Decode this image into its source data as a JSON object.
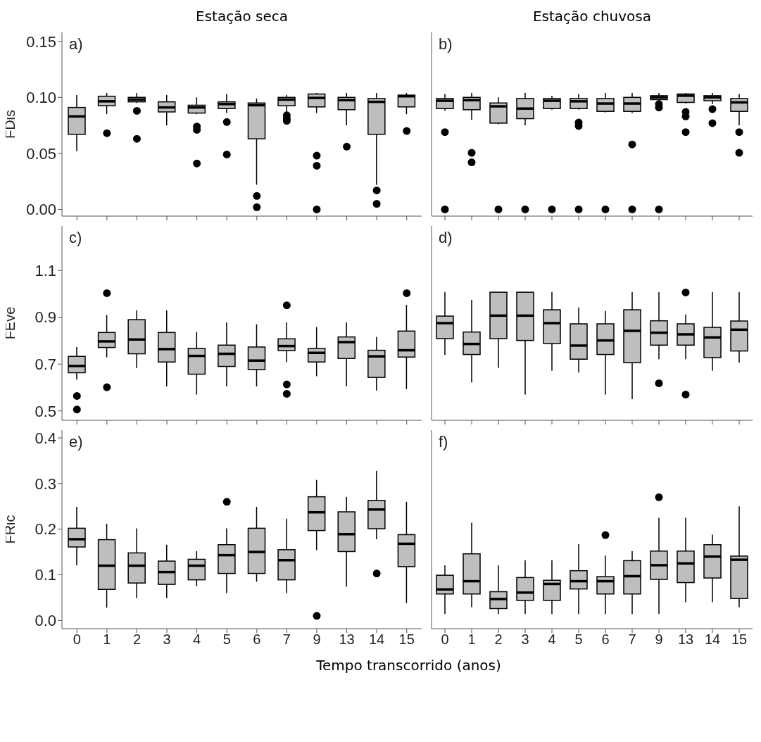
{
  "chart_data": [
    {
      "type": "box",
      "title": "Estação seca",
      "ylabel": "FDis",
      "annotations": [
        "a)"
      ],
      "color": "#bebebe",
      "tick_labels": "y",
      "categories": [
        "0",
        "1",
        "2",
        "3",
        "4",
        "5",
        "6",
        "7",
        "9",
        "13",
        "14",
        "15"
      ],
      "ylim": [
        -0.006,
        0.158
      ],
      "yticks": [
        {
          "value": 0,
          "label": "0.00"
        },
        {
          "value": 0.05,
          "label": "0.05"
        },
        {
          "value": 0.1,
          "label": "0.10"
        },
        {
          "value": 0.15,
          "label": "0.15"
        }
      ],
      "boxes": [
        {
          "low": 0.052,
          "q1": 0.067,
          "median": 0.083,
          "q3": 0.091,
          "high": 0.102
        },
        {
          "low": 0.085,
          "q1": 0.0925,
          "median": 0.0965,
          "q3": 0.101,
          "high": 0.104,
          "outliers": [
            0.068
          ]
        },
        {
          "low": 0.095,
          "q1": 0.096,
          "median": 0.098,
          "q3": 0.1,
          "high": 0.104,
          "outliers": [
            0.088,
            0.063
          ]
        },
        {
          "low": 0.075,
          "q1": 0.087,
          "median": 0.091,
          "q3": 0.096,
          "high": 0.102
        },
        {
          "low": 0.085,
          "q1": 0.086,
          "median": 0.091,
          "q3": 0.093,
          "high": 0.1,
          "outliers": [
            0.074,
            0.071,
            0.041
          ]
        },
        {
          "low": 0.086,
          "q1": 0.09,
          "median": 0.094,
          "q3": 0.096,
          "high": 0.103,
          "outliers": [
            0.078,
            0.049
          ]
        },
        {
          "low": 0.022,
          "q1": 0.063,
          "median": 0.093,
          "q3": 0.095,
          "high": 0.099,
          "outliers": [
            0.012,
            0.002
          ]
        },
        {
          "low": 0.087,
          "q1": 0.0925,
          "median": 0.098,
          "q3": 0.1,
          "high": 0.102,
          "outliers": [
            0.084,
            0.081,
            0.079
          ]
        },
        {
          "low": 0.086,
          "q1": 0.0915,
          "median": 0.0995,
          "q3": 0.103,
          "high": 0.104,
          "outliers": [
            0.048,
            0.039,
            0
          ]
        },
        {
          "low": 0.075,
          "q1": 0.089,
          "median": 0.0975,
          "q3": 0.1,
          "high": 0.104,
          "outliers": [
            0.056
          ]
        },
        {
          "low": 0.022,
          "q1": 0.067,
          "median": 0.096,
          "q3": 0.099,
          "high": 0.104,
          "outliers": [
            0.017,
            0.005
          ]
        },
        {
          "low": 0.085,
          "q1": 0.0915,
          "median": 0.101,
          "q3": 0.102,
          "high": 0.104,
          "outliers": [
            0.07
          ]
        }
      ]
    },
    {
      "type": "box",
      "title": "Estação chuvosa",
      "annotations": [
        "b)"
      ],
      "color": "#bebebe",
      "tick_labels": false,
      "categories": [
        "0",
        "1",
        "2",
        "3",
        "4",
        "5",
        "6",
        "7",
        "9",
        "13",
        "14",
        "15"
      ],
      "ylim": [
        -0.006,
        0.158
      ],
      "boxes": [
        {
          "low": 0.088,
          "q1": 0.09,
          "median": 0.097,
          "q3": 0.099,
          "high": 0.103,
          "outliers": [
            0.069,
            0
          ]
        },
        {
          "low": 0.08,
          "q1": 0.089,
          "median": 0.0975,
          "q3": 0.1,
          "high": 0.104,
          "outliers": [
            0.0505,
            0.042
          ]
        },
        {
          "low": 0.076,
          "q1": 0.077,
          "median": 0.092,
          "q3": 0.095,
          "high": 0.1,
          "outliers": [
            0
          ]
        },
        {
          "low": 0.075,
          "q1": 0.081,
          "median": 0.09,
          "q3": 0.099,
          "high": 0.104,
          "outliers": [
            0
          ]
        },
        {
          "low": 0.089,
          "q1": 0.09,
          "median": 0.097,
          "q3": 0.099,
          "high": 0.1015,
          "outliers": [
            0
          ]
        },
        {
          "low": 0.089,
          "q1": 0.09,
          "median": 0.0965,
          "q3": 0.099,
          "high": 0.103,
          "outliers": [
            0.0775,
            0.0745,
            0
          ]
        },
        {
          "low": 0.0865,
          "q1": 0.0875,
          "median": 0.0945,
          "q3": 0.099,
          "high": 0.104,
          "outliers": [
            0
          ]
        },
        {
          "low": 0.086,
          "q1": 0.0875,
          "median": 0.0945,
          "q3": 0.1,
          "high": 0.104,
          "outliers": [
            0.058,
            0
          ]
        },
        {
          "low": 0.097,
          "q1": 0.098,
          "median": 0.1,
          "q3": 0.1015,
          "high": 0.104,
          "outliers": [
            0.094,
            0.091,
            0
          ]
        },
        {
          "low": 0.0945,
          "q1": 0.0955,
          "median": 0.1015,
          "q3": 0.103,
          "high": 0.104,
          "outliers": [
            0.087,
            0.083,
            0.069
          ]
        },
        {
          "low": 0.094,
          "q1": 0.097,
          "median": 0.1,
          "q3": 0.1015,
          "high": 0.104,
          "outliers": [
            0.0895,
            0.077
          ]
        },
        {
          "low": 0.075,
          "q1": 0.0875,
          "median": 0.0955,
          "q3": 0.099,
          "high": 0.103,
          "outliers": [
            0.069,
            0.0505
          ]
        }
      ]
    },
    {
      "type": "box",
      "ylabel": "FEve",
      "annotations": [
        "c)"
      ],
      "color": "#bebebe",
      "tick_labels": "y",
      "categories": [
        "0",
        "1",
        "2",
        "3",
        "4",
        "5",
        "6",
        "7",
        "9",
        "13",
        "14",
        "15"
      ],
      "ylim": [
        0.46,
        1.29
      ],
      "yticks": [
        0.5,
        0.7,
        0.9,
        1.1
      ],
      "boxes": [
        {
          "low": 0.634,
          "q1": 0.663,
          "median": 0.692,
          "q3": 0.733,
          "high": 0.773,
          "outliers": [
            0.564,
            0.506
          ]
        },
        {
          "low": 0.729,
          "q1": 0.771,
          "median": 0.797,
          "q3": 0.835,
          "high": 0.91,
          "outliers": [
            1.003,
            0.601
          ]
        },
        {
          "low": 0.683,
          "q1": 0.744,
          "median": 0.805,
          "q3": 0.89,
          "high": 0.93
        },
        {
          "low": 0.605,
          "q1": 0.709,
          "median": 0.764,
          "q3": 0.835,
          "high": 0.93
        },
        {
          "low": 0.57,
          "q1": 0.657,
          "median": 0.735,
          "q3": 0.767,
          "high": 0.837
        },
        {
          "low": 0.605,
          "q1": 0.69,
          "median": 0.744,
          "q3": 0.781,
          "high": 0.878
        },
        {
          "low": 0.605,
          "q1": 0.677,
          "median": 0.715,
          "q3": 0.773,
          "high": 0.87
        },
        {
          "low": 0.709,
          "q1": 0.758,
          "median": 0.777,
          "q3": 0.808,
          "high": 0.878,
          "outliers": [
            0.951,
            0.613,
            0.573
          ]
        },
        {
          "low": 0.648,
          "q1": 0.709,
          "median": 0.748,
          "q3": 0.767,
          "high": 0.858
        },
        {
          "low": 0.605,
          "q1": 0.724,
          "median": 0.794,
          "q3": 0.816,
          "high": 0.878
        },
        {
          "low": 0.587,
          "q1": 0.643,
          "median": 0.733,
          "q3": 0.759,
          "high": 0.816
        },
        {
          "low": 0.593,
          "q1": 0.73,
          "median": 0.759,
          "q3": 0.841,
          "high": 0.953,
          "outliers": [
            1.003
          ]
        }
      ]
    },
    {
      "type": "box",
      "annotations": [
        "d)"
      ],
      "color": "#bebebe",
      "tick_labels": false,
      "categories": [
        "0",
        "1",
        "2",
        "3",
        "4",
        "5",
        "6",
        "7",
        "9",
        "13",
        "14",
        "15"
      ],
      "ylim": [
        0.46,
        1.29
      ],
      "boxes": [
        {
          "low": 0.739,
          "q1": 0.809,
          "median": 0.875,
          "q3": 0.905,
          "high": 1.008
        },
        {
          "low": 0.622,
          "q1": 0.741,
          "median": 0.786,
          "q3": 0.837,
          "high": 0.974
        },
        {
          "low": 0.684,
          "q1": 0.809,
          "median": 0.907,
          "q3": 1.007,
          "high": 1.008
        },
        {
          "low": 0.57,
          "q1": 0.801,
          "median": 0.907,
          "q3": 1.007,
          "high": 1.008
        },
        {
          "low": 0.671,
          "q1": 0.788,
          "median": 0.875,
          "q3": 0.932,
          "high": 1.008
        },
        {
          "low": 0.664,
          "q1": 0.721,
          "median": 0.779,
          "q3": 0.872,
          "high": 0.942
        },
        {
          "low": 0.57,
          "q1": 0.741,
          "median": 0.801,
          "q3": 0.872,
          "high": 0.927
        },
        {
          "low": 0.55,
          "q1": 0.706,
          "median": 0.842,
          "q3": 0.932,
          "high": 1.008
        },
        {
          "low": 0.721,
          "q1": 0.781,
          "median": 0.834,
          "q3": 0.885,
          "high": 1.008,
          "outliers": [
            0.618
          ]
        },
        {
          "low": 0.721,
          "q1": 0.781,
          "median": 0.827,
          "q3": 0.872,
          "high": 0.912,
          "outliers": [
            1.006,
            0.57
          ]
        },
        {
          "low": 0.671,
          "q1": 0.728,
          "median": 0.814,
          "q3": 0.857,
          "high": 1.008
        },
        {
          "low": 0.706,
          "q1": 0.756,
          "median": 0.847,
          "q3": 0.884,
          "high": 1.008
        }
      ]
    },
    {
      "type": "box",
      "ylabel": "FRic",
      "xlabel": "Tempo transcorrido (anos)",
      "annotations": [
        "e)"
      ],
      "color": "#bebebe",
      "categories": [
        "0",
        "1",
        "2",
        "3",
        "4",
        "5",
        "6",
        "7",
        "9",
        "13",
        "14",
        "15"
      ],
      "ylim": [
        -0.018,
        0.417
      ],
      "yticks": [
        {
          "value": 0,
          "label": "0.0"
        },
        {
          "value": 0.1,
          "label": "0.1"
        },
        {
          "value": 0.2,
          "label": "0.2"
        },
        {
          "value": 0.3,
          "label": "0.3"
        },
        {
          "value": 0.4,
          "label": "0.4"
        }
      ],
      "boxes": [
        {
          "low": 0.121,
          "q1": 0.161,
          "median": 0.178,
          "q3": 0.202,
          "high": 0.249
        },
        {
          "low": 0.028,
          "q1": 0.068,
          "median": 0.12,
          "q3": 0.177,
          "high": 0.212
        },
        {
          "low": 0.049,
          "q1": 0.082,
          "median": 0.12,
          "q3": 0.148,
          "high": 0.202
        },
        {
          "low": 0.049,
          "q1": 0.079,
          "median": 0.106,
          "q3": 0.13,
          "high": 0.166
        },
        {
          "low": 0.075,
          "q1": 0.089,
          "median": 0.12,
          "q3": 0.134,
          "high": 0.152
        },
        {
          "low": 0.06,
          "q1": 0.103,
          "median": 0.143,
          "q3": 0.166,
          "high": 0.202,
          "outliers": [
            0.26
          ]
        },
        {
          "low": 0.085,
          "q1": 0.103,
          "median": 0.15,
          "q3": 0.202,
          "high": 0.249
        },
        {
          "low": 0.06,
          "q1": 0.089,
          "median": 0.132,
          "q3": 0.155,
          "high": 0.223
        },
        {
          "low": 0.154,
          "q1": 0.197,
          "median": 0.237,
          "q3": 0.271,
          "high": 0.308,
          "outliers": [
            0.01
          ]
        },
        {
          "low": 0.074,
          "q1": 0.151,
          "median": 0.189,
          "q3": 0.238,
          "high": 0.271
        },
        {
          "low": 0.178,
          "q1": 0.201,
          "median": 0.243,
          "q3": 0.263,
          "high": 0.328,
          "outliers": [
            0.103
          ]
        },
        {
          "low": 0.038,
          "q1": 0.118,
          "median": 0.168,
          "q3": 0.188,
          "high": 0.26
        }
      ]
    },
    {
      "type": "box",
      "annotations": [
        "f)"
      ],
      "color": "#bebebe",
      "tick_labels": "x",
      "categories": [
        "0",
        "1",
        "2",
        "3",
        "4",
        "5",
        "6",
        "7",
        "9",
        "13",
        "14",
        "15"
      ],
      "ylim": [
        -0.018,
        0.417
      ],
      "boxes": [
        {
          "low": 0.014,
          "q1": 0.058,
          "median": 0.068,
          "q3": 0.099,
          "high": 0.121
        },
        {
          "low": 0.029,
          "q1": 0.058,
          "median": 0.086,
          "q3": 0.146,
          "high": 0.214
        },
        {
          "low": 0.014,
          "q1": 0.026,
          "median": 0.047,
          "q3": 0.063,
          "high": 0.121
        },
        {
          "low": 0.014,
          "q1": 0.044,
          "median": 0.061,
          "q3": 0.094,
          "high": 0.132
        },
        {
          "low": 0.014,
          "q1": 0.044,
          "median": 0.08,
          "q3": 0.088,
          "high": 0.132
        },
        {
          "low": 0.014,
          "q1": 0.069,
          "median": 0.086,
          "q3": 0.109,
          "high": 0.167
        },
        {
          "low": 0.014,
          "q1": 0.058,
          "median": 0.086,
          "q3": 0.096,
          "high": 0.142,
          "outliers": [
            0.187
          ]
        },
        {
          "low": 0.014,
          "q1": 0.058,
          "median": 0.097,
          "q3": 0.131,
          "high": 0.152
        },
        {
          "low": 0.014,
          "q1": 0.09,
          "median": 0.121,
          "q3": 0.152,
          "high": 0.225,
          "outliers": [
            0.27
          ]
        },
        {
          "low": 0.04,
          "q1": 0.083,
          "median": 0.125,
          "q3": 0.152,
          "high": 0.225
        },
        {
          "low": 0.04,
          "q1": 0.093,
          "median": 0.14,
          "q3": 0.166,
          "high": 0.188
        },
        {
          "low": 0.029,
          "q1": 0.048,
          "median": 0.133,
          "q3": 0.141,
          "high": 0.25
        }
      ]
    }
  ]
}
